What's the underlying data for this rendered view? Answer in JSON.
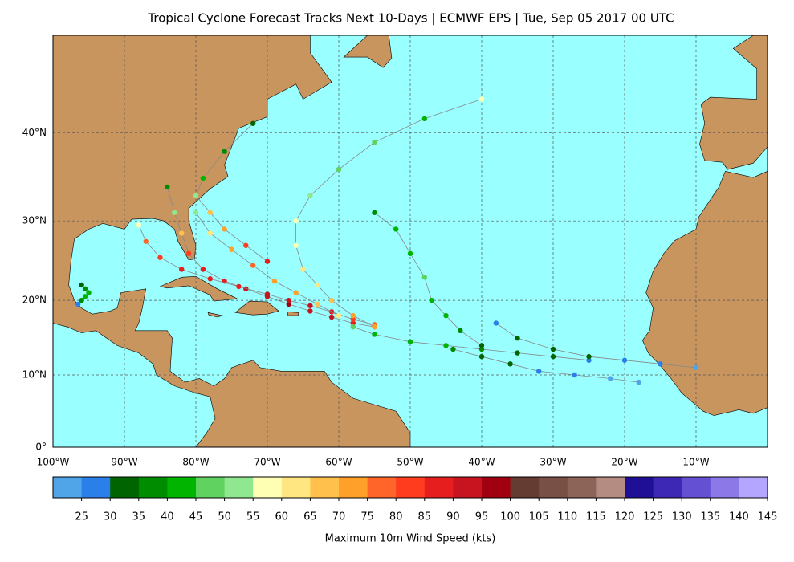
{
  "chart_data": {
    "type": "map-scatter",
    "title": "Tropical Cyclone Forecast Tracks Next 10-Days | ECMWF EPS | Tue, Sep 05 2017 00 UTC",
    "xlim": [
      -100,
      0
    ],
    "ylim": [
      0,
      49.6
    ],
    "xticks": [
      {
        "value": -100,
        "label": "100°W"
      },
      {
        "value": -90,
        "label": "90°W"
      },
      {
        "value": -80,
        "label": "80°W"
      },
      {
        "value": -70,
        "label": "70°W"
      },
      {
        "value": -60,
        "label": "60°W"
      },
      {
        "value": -50,
        "label": "50°W"
      },
      {
        "value": -40,
        "label": "40°W"
      },
      {
        "value": -30,
        "label": "30°W"
      },
      {
        "value": -20,
        "label": "20°W"
      },
      {
        "value": -10,
        "label": "10°W"
      }
    ],
    "yticks": [
      {
        "value": 0,
        "label": "0°"
      },
      {
        "value": 10,
        "label": "10°N"
      },
      {
        "value": 20,
        "label": "20°N"
      },
      {
        "value": 30,
        "label": "30°N"
      },
      {
        "value": 40,
        "label": "40°N"
      }
    ],
    "grid": true,
    "colorbar": {
      "label": "Maximum 10m Wind Speed (kts)",
      "lim": [
        20,
        145
      ],
      "ticks": [
        25,
        30,
        35,
        40,
        45,
        50,
        55,
        60,
        65,
        70,
        75,
        80,
        85,
        90,
        95,
        100,
        105,
        110,
        115,
        120,
        125,
        130,
        135,
        140,
        145
      ],
      "colors": [
        "#4fa5e8",
        "#2b7fe8",
        "#006400",
        "#008c00",
        "#00b400",
        "#5fd25f",
        "#8fe88f",
        "#ffffb4",
        "#ffe680",
        "#ffc04c",
        "#ffa02a",
        "#ff6428",
        "#ff3c1e",
        "#e61e1e",
        "#c8141e",
        "#a0000f",
        "#643c32",
        "#785046",
        "#8c6458",
        "#b48c82",
        "#1e0f96",
        "#3c28b4",
        "#6450d2",
        "#8c78e6",
        "#b4a5ff"
      ]
    },
    "tracks": [
      {
        "lon": [
          -55,
          -58,
          -61,
          -64,
          -67,
          -70,
          -73,
          -76,
          -79,
          -81,
          -82,
          -83,
          -84
        ],
        "lat": [
          16.5,
          17,
          17.8,
          18.6,
          19.5,
          20.5,
          21.5,
          22.5,
          24,
          26,
          28.5,
          31,
          34
        ],
        "wind": [
          80,
          85,
          90,
          92,
          95,
          93,
          90,
          88,
          86,
          80,
          65,
          50,
          38
        ]
      },
      {
        "lon": [
          -55,
          -58,
          -61,
          -64,
          -67,
          -70,
          -74,
          -78,
          -82,
          -85,
          -87,
          -88
        ],
        "lat": [
          16.8,
          17.5,
          18.5,
          19.3,
          20,
          20.8,
          21.8,
          22.8,
          24,
          25.5,
          27.5,
          29.5
        ],
        "wind": [
          78,
          82,
          88,
          90,
          92,
          90,
          88,
          87,
          86,
          84,
          75,
          58
        ]
      },
      {
        "lon": [
          -55,
          -58,
          -61,
          -63,
          -65,
          -66,
          -66,
          -64,
          -60,
          -55,
          -48,
          -40
        ],
        "lat": [
          16.5,
          18,
          20,
          22,
          24,
          27,
          30,
          33,
          36,
          39,
          41.5,
          43.5
        ],
        "wind": [
          70,
          72,
          68,
          64,
          60,
          58,
          56,
          52,
          48,
          46,
          44,
          58
        ]
      },
      {
        "lon": [
          -25,
          -30,
          -35,
          -40,
          -45,
          -50,
          -55,
          -58
        ],
        "lat": [
          12,
          12.5,
          13,
          13.5,
          14,
          14.5,
          15.5,
          16.5
        ],
        "wind": [
          28,
          31,
          34,
          37,
          40,
          42,
          44,
          47
        ]
      },
      {
        "lon": [
          -40,
          -43,
          -45,
          -47,
          -48,
          -50,
          -52,
          -55
        ],
        "lat": [
          14,
          16,
          18,
          20,
          23,
          26,
          29,
          31
        ],
        "wind": [
          33,
          38,
          42,
          44,
          46,
          43,
          40,
          37
        ]
      },
      {
        "lon": [
          -10,
          -15,
          -20,
          -25,
          -30,
          -35,
          -38
        ],
        "lat": [
          11,
          11.5,
          12,
          12.5,
          13.5,
          15,
          17
        ],
        "wind": [
          24,
          26,
          28,
          31,
          33,
          32,
          29
        ]
      },
      {
        "lon": [
          -96,
          -95.5,
          -95,
          -95.5,
          -96,
          -96.5
        ],
        "lat": [
          22,
          21.5,
          21,
          20.5,
          20,
          19.5
        ],
        "wind": [
          32,
          36,
          41,
          44,
          37,
          28
        ]
      },
      {
        "lon": [
          -70,
          -73,
          -76,
          -78,
          -80,
          -79,
          -76,
          -72
        ],
        "lat": [
          25,
          27,
          29,
          31,
          33,
          35,
          38,
          41
        ],
        "wind": [
          86,
          82,
          74,
          66,
          52,
          44,
          38,
          33
        ]
      },
      {
        "lon": [
          -60,
          -63,
          -66,
          -69,
          -72,
          -75,
          -78,
          -80
        ],
        "lat": [
          18,
          19.5,
          21,
          22.5,
          24.5,
          26.5,
          28.5,
          31
        ],
        "wind": [
          62,
          66,
          70,
          72,
          76,
          70,
          62,
          54
        ]
      },
      {
        "lon": [
          -18,
          -22,
          -27,
          -32,
          -36,
          -40,
          -44
        ],
        "lat": [
          9,
          9.5,
          10,
          10.5,
          11.5,
          12.5,
          13.5
        ],
        "wind": [
          22,
          24,
          26,
          27,
          30,
          34,
          36
        ]
      }
    ]
  }
}
